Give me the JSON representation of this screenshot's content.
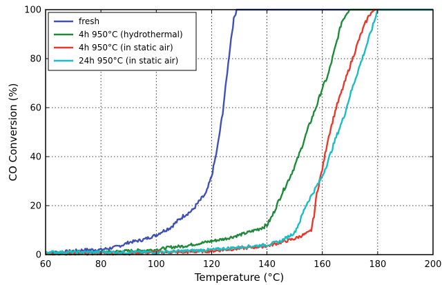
{
  "chart_data": {
    "type": "line",
    "title": "",
    "xlabel": "Temperature (°C)",
    "ylabel": "CO Conversion (%)",
    "xlim": [
      60,
      200
    ],
    "ylim": [
      0,
      100
    ],
    "xticks": [
      60,
      80,
      100,
      120,
      140,
      160,
      180,
      200
    ],
    "yticks": [
      0,
      20,
      40,
      60,
      80,
      100
    ],
    "grid": true,
    "grid_style": "dotted",
    "legend_position": "top-left",
    "series": [
      {
        "name": "fresh",
        "color": "#3f51b5",
        "x": [
          60,
          65,
          70,
          75,
          80,
          85,
          88,
          90,
          95,
          100,
          103,
          105,
          108,
          110,
          113,
          115,
          118,
          120,
          122,
          124,
          126,
          127,
          128,
          129,
          130,
          140,
          150,
          160,
          170,
          180,
          190,
          200
        ],
        "y": [
          1,
          1,
          1.5,
          2,
          2,
          3,
          4,
          5,
          6,
          8,
          10,
          11,
          14,
          16,
          18,
          21,
          25,
          32,
          43,
          58,
          78,
          88,
          96,
          100,
          100,
          100,
          100,
          100,
          100,
          100,
          100,
          100
        ]
      },
      {
        "name": "4h 950°C (hydrothermal)",
        "color": "#1e8a3a",
        "x": [
          60,
          70,
          80,
          90,
          100,
          105,
          110,
          115,
          120,
          125,
          130,
          133,
          137,
          140,
          142,
          145,
          148,
          150,
          152,
          155,
          158,
          160,
          162,
          165,
          167,
          169,
          170,
          180,
          190,
          200
        ],
        "y": [
          0.5,
          0.5,
          1,
          1.5,
          2,
          3,
          3.5,
          4.5,
          5.5,
          6.5,
          8,
          9,
          10.5,
          12,
          16,
          24,
          31,
          36,
          42,
          52,
          61,
          68,
          73,
          86,
          95,
          99,
          100,
          100,
          100,
          100
        ]
      },
      {
        "name": "4h 950°C (in static air)",
        "color": "#e8382a",
        "x": [
          60,
          70,
          80,
          90,
          100,
          110,
          120,
          125,
          130,
          135,
          140,
          145,
          150,
          153,
          155,
          156,
          157,
          158,
          160,
          162,
          165,
          168,
          170,
          173,
          175,
          177,
          179,
          180,
          190,
          200
        ],
        "y": [
          0.5,
          0.5,
          0.5,
          0.5,
          1,
          1,
          1.5,
          2,
          2.5,
          3,
          3.5,
          5,
          6.5,
          8,
          9,
          10,
          16,
          25,
          35,
          47,
          60,
          70,
          77,
          87,
          93,
          98,
          100,
          100,
          100,
          100
        ]
      },
      {
        "name": "24h 950°C (in static air)",
        "color": "#1bbcc4",
        "x": [
          60,
          70,
          80,
          90,
          100,
          110,
          120,
          125,
          130,
          135,
          140,
          145,
          150,
          152,
          154,
          156,
          158,
          160,
          162,
          165,
          168,
          170,
          172,
          175,
          177,
          179,
          180,
          190,
          200
        ],
        "y": [
          1,
          1,
          1,
          1,
          1,
          1.5,
          2,
          2.5,
          3,
          3.5,
          4,
          5.5,
          9,
          14,
          20,
          24,
          28,
          32,
          38,
          48,
          57,
          65,
          72,
          82,
          89,
          96,
          100,
          100,
          100
        ]
      }
    ]
  }
}
